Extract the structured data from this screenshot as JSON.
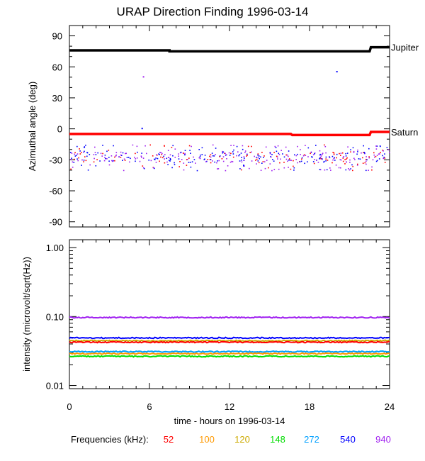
{
  "title": "URAP Direction Finding  1996-03-14",
  "chart_data": [
    {
      "type": "line",
      "ylabel": "Azimuthal angle (deg)",
      "ylim": [
        -95,
        100
      ],
      "yticks": [
        "90",
        "60",
        "30",
        "0",
        "-30",
        "-60",
        "-90"
      ],
      "ytick_values": [
        90,
        60,
        30,
        0,
        -30,
        -60,
        -90
      ],
      "series": [
        {
          "name": "Jupiter",
          "color": "#000000",
          "x": [
            0,
            7.5,
            7.5,
            22.5,
            22.6,
            24
          ],
          "y": [
            76,
            76,
            75,
            75,
            79,
            79
          ]
        },
        {
          "name": "Saturn",
          "color": "#ff0000",
          "x": [
            0,
            16.6,
            16.7,
            22.5,
            22.6,
            24
          ],
          "y": [
            -5,
            -5,
            -6,
            -6,
            -3,
            -3
          ]
        }
      ],
      "scatter_note": "direction-finding points clustered between about -15 and -40 deg",
      "scatter_range": [
        -15,
        -40
      ],
      "outliers": [
        {
          "x": 5.5,
          "y": 51,
          "color": "#a020f0"
        },
        {
          "x": 20.0,
          "y": 56,
          "color": "#0000ff"
        },
        {
          "x": 5.4,
          "y": 1,
          "color": "#0000ff"
        }
      ]
    },
    {
      "type": "line",
      "ylabel": "intensity (microvolt/sqrt(Hz))",
      "xlabel": "time - hours on 1996-03-14",
      "yscale": "log",
      "ylim": [
        0.01,
        1.0
      ],
      "yticks": [
        "1.00",
        "0.10",
        "0.01"
      ],
      "ytick_values": [
        1.0,
        0.1,
        0.01
      ],
      "xlim": [
        0,
        24
      ],
      "xticks": [
        "0",
        "6",
        "12",
        "18",
        "24"
      ],
      "xtick_values": [
        0,
        6,
        12,
        18,
        24
      ],
      "series": [
        {
          "name": "940",
          "color": "#a020f0",
          "y": 0.097
        },
        {
          "name": "540",
          "color": "#0000ff",
          "y": 0.049
        },
        {
          "name": "120",
          "color": "#ccaa00",
          "y": 0.0445
        },
        {
          "name": "52",
          "color": "#ff0000",
          "y": 0.0425
        },
        {
          "name": "272",
          "color": "#00a0ff",
          "y": 0.031
        },
        {
          "name": "100",
          "color": "#ff9900",
          "y": 0.029
        },
        {
          "name": "148",
          "color": "#00dd00",
          "y": 0.0265
        }
      ]
    }
  ],
  "legend": {
    "label": "Frequencies (kHz):",
    "items": [
      {
        "text": "52",
        "color": "#ff0000"
      },
      {
        "text": "100",
        "color": "#ff9900"
      },
      {
        "text": "120",
        "color": "#ccaa00"
      },
      {
        "text": "148",
        "color": "#00dd00"
      },
      {
        "text": "272",
        "color": "#00a0ff"
      },
      {
        "text": "540",
        "color": "#0000ff"
      },
      {
        "text": "940",
        "color": "#a020f0"
      }
    ]
  }
}
